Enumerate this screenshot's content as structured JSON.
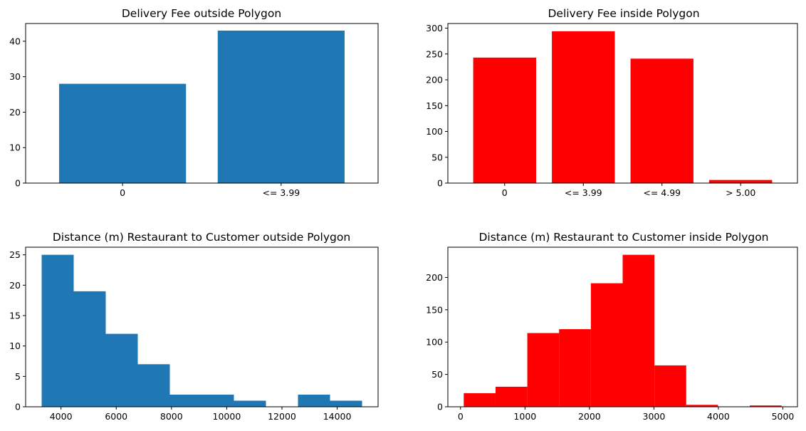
{
  "chart_data": [
    {
      "type": "bar",
      "title": "Delivery Fee outside Polygon",
      "categories": [
        "0",
        "<= 3.99"
      ],
      "values": [
        28,
        43
      ],
      "color": "#1f77b4",
      "ylim": [
        0,
        45
      ],
      "yticks": [
        0,
        10,
        20,
        30,
        40
      ],
      "grid": false
    },
    {
      "type": "bar",
      "title": "Delivery Fee inside Polygon",
      "categories": [
        "0",
        "<= 3.99",
        "<= 4.99",
        "> 5.00"
      ],
      "values": [
        243,
        294,
        241,
        6
      ],
      "color": "#ff0000",
      "ylim": [
        0,
        309
      ],
      "yticks": [
        0,
        50,
        100,
        150,
        200,
        250,
        300
      ],
      "grid": false
    },
    {
      "type": "bar",
      "subtype": "histogram",
      "title": "Distance (m) Restaurant to Customer outside Polygon",
      "bin_edges": [
        3300,
        4460,
        5620,
        6780,
        7940,
        9100,
        10260,
        11420,
        12580,
        13740,
        14900
      ],
      "values": [
        25,
        19,
        12,
        7,
        2,
        2,
        1,
        0,
        2,
        1
      ],
      "color": "#1f77b4",
      "xlim": [
        2720,
        15480
      ],
      "ylim": [
        0,
        26.25
      ],
      "xticks": [
        4000,
        6000,
        8000,
        10000,
        12000,
        14000
      ],
      "yticks": [
        0,
        5,
        10,
        15,
        20,
        25
      ],
      "grid": false
    },
    {
      "type": "bar",
      "subtype": "histogram",
      "title": "Distance (m) Restaurant to Customer inside Polygon",
      "bin_edges": [
        50,
        543,
        1036,
        1529,
        2022,
        2515,
        3008,
        3501,
        3994,
        4487,
        4980
      ],
      "values": [
        21,
        31,
        114,
        120,
        191,
        235,
        64,
        3,
        0,
        2
      ],
      "color": "#ff0000",
      "xlim": [
        -196.5,
        5226.5
      ],
      "ylim": [
        0,
        246.75
      ],
      "xticks": [
        0,
        1000,
        2000,
        3000,
        4000,
        5000
      ],
      "yticks": [
        0,
        50,
        100,
        150,
        200
      ],
      "grid": false
    }
  ]
}
